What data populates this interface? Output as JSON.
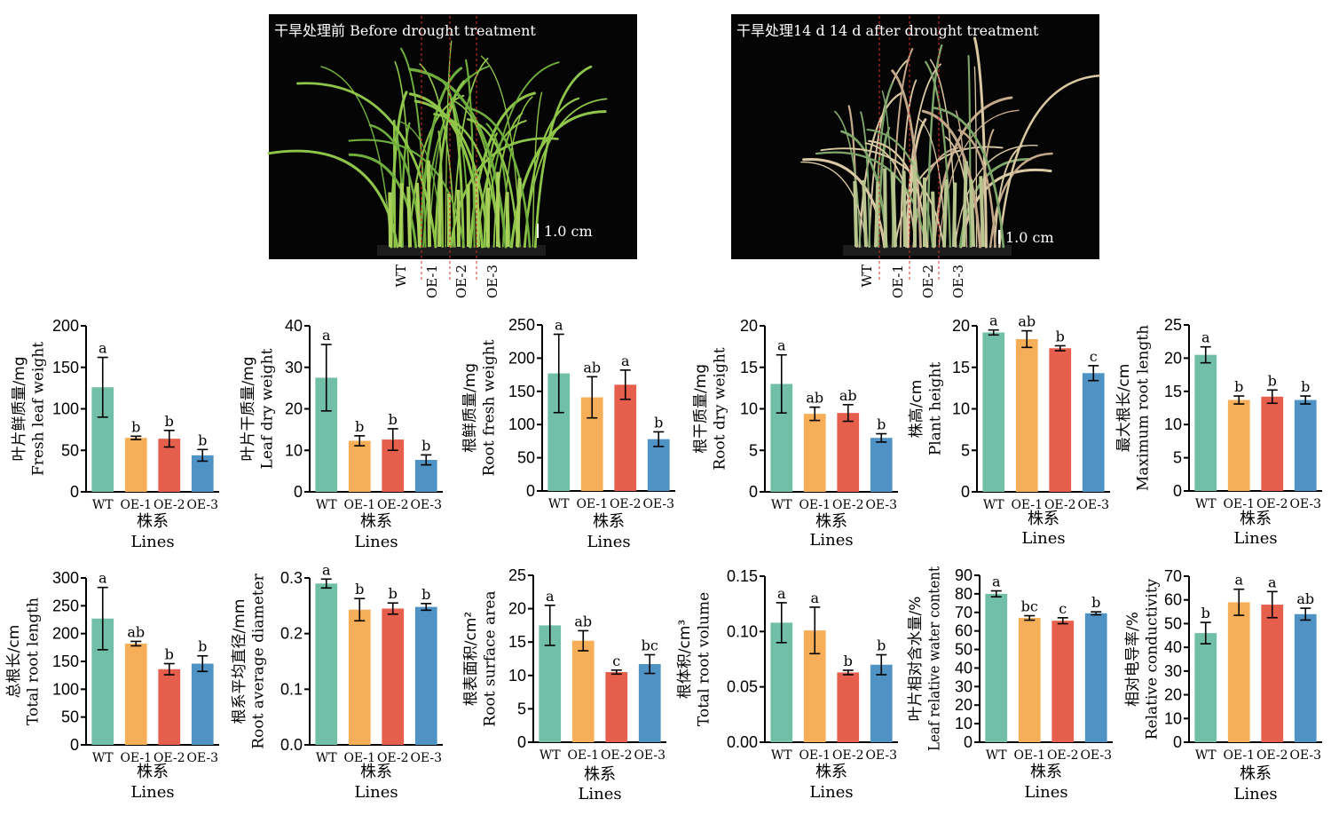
{
  "colors": {
    "WT": "#72bfa8",
    "OE-1": "#f6ae58",
    "OE-2": "#e55f4c",
    "OE-3": "#4f93c4"
  },
  "photos": [
    {
      "title": "干旱处理前 Before drought treatment",
      "scale_label": "1.0 cm",
      "lines": [
        "WT",
        "OE-1",
        "OE-2",
        "OE-3"
      ]
    },
    {
      "title": "干旱处理14 d 14 d after drought treatment",
      "scale_label": "1.0 cm",
      "lines": [
        "WT",
        "OE-1",
        "OE-2",
        "OE-3"
      ]
    }
  ],
  "chart_data": [
    {
      "type": "bar",
      "ylabel_cn": "叶片鲜质量/mg",
      "ylabel_en": "Fresh leaf weight",
      "xlabel_cn": "株系",
      "xlabel_en": "Lines",
      "categories": [
        "WT",
        "OE-1",
        "OE-2",
        "OE-3"
      ],
      "values": [
        126,
        65,
        64,
        44
      ],
      "errors": [
        36,
        2,
        10,
        7
      ],
      "letters": [
        "a",
        "b",
        "b",
        "b"
      ],
      "ylim": [
        0,
        200
      ],
      "yticks": [
        "0",
        "50",
        "100",
        "150",
        "200"
      ]
    },
    {
      "type": "bar",
      "ylabel_cn": "叶片干质量/mg",
      "ylabel_en": "Leaf dry weight",
      "xlabel_cn": "株系",
      "xlabel_en": "Lines",
      "categories": [
        "WT",
        "OE-1",
        "OE-2",
        "OE-3"
      ],
      "values": [
        27.5,
        12.3,
        12.6,
        7.7
      ],
      "errors": [
        8,
        1.2,
        2.6,
        1.2
      ],
      "letters": [
        "a",
        "b",
        "b",
        "b"
      ],
      "ylim": [
        0,
        40
      ],
      "yticks": [
        "0",
        "10",
        "20",
        "30",
        "40"
      ]
    },
    {
      "type": "bar",
      "ylabel_cn": "根鲜质量/mg",
      "ylabel_en": "Root fresh weight",
      "xlabel_cn": "株系",
      "xlabel_en": "Lines",
      "categories": [
        "WT",
        "OE-1",
        "OE-2",
        "OE-3"
      ],
      "values": [
        177,
        141,
        160,
        78
      ],
      "errors": [
        59,
        31,
        22,
        11
      ],
      "letters": [
        "a",
        "ab",
        "a",
        "b"
      ],
      "ylim": [
        0,
        250
      ],
      "yticks": [
        "0",
        "50",
        "100",
        "150",
        "200",
        "250"
      ]
    },
    {
      "type": "bar",
      "ylabel_cn": "根干质量/mg",
      "ylabel_en": "Root dry weight",
      "xlabel_cn": "株系",
      "xlabel_en": "Lines",
      "categories": [
        "WT",
        "OE-1",
        "OE-2",
        "OE-3"
      ],
      "values": [
        13.0,
        9.4,
        9.5,
        6.5
      ],
      "errors": [
        3.5,
        0.8,
        1.0,
        0.5
      ],
      "letters": [
        "a",
        "ab",
        "ab",
        "b"
      ],
      "ylim": [
        0,
        20
      ],
      "yticks": [
        "0",
        "5",
        "10",
        "15",
        "20"
      ]
    },
    {
      "type": "bar",
      "ylabel_cn": "株高/cm",
      "ylabel_en": "Plant height",
      "xlabel_cn": "株系",
      "xlabel_en": "Lines",
      "categories": [
        "WT",
        "OE-1",
        "OE-2",
        "OE-3"
      ],
      "values": [
        19.2,
        18.4,
        17.3,
        14.3
      ],
      "errors": [
        0.3,
        1.0,
        0.3,
        0.9
      ],
      "letters": [
        "a",
        "ab",
        "b",
        "c"
      ],
      "ylim": [
        0,
        20
      ],
      "yticks": [
        "0",
        "5",
        "10",
        "15",
        "20"
      ]
    },
    {
      "type": "bar",
      "ylabel_cn": "最大根长/cm",
      "ylabel_en": "Maximum root length",
      "xlabel_cn": "株系",
      "xlabel_en": "Lines",
      "categories": [
        "WT",
        "OE-1",
        "OE-2",
        "OE-3"
      ],
      "values": [
        20.5,
        13.7,
        14.2,
        13.7
      ],
      "errors": [
        1.2,
        0.6,
        1.0,
        0.6
      ],
      "letters": [
        "a",
        "b",
        "b",
        "b"
      ],
      "ylim": [
        0,
        25
      ],
      "yticks": [
        "0",
        "5",
        "10",
        "15",
        "20",
        "25"
      ]
    },
    {
      "type": "bar",
      "ylabel_cn": "总根长/cm",
      "ylabel_en": "Total root length",
      "xlabel_cn": "株系",
      "xlabel_en": "Lines",
      "categories": [
        "WT",
        "OE-1",
        "OE-2",
        "OE-3"
      ],
      "values": [
        227,
        182,
        136,
        146
      ],
      "errors": [
        56,
        4,
        10,
        14
      ],
      "letters": [
        "a",
        "ab",
        "b",
        "b"
      ],
      "ylim": [
        0,
        300
      ],
      "yticks": [
        "0",
        "50",
        "100",
        "150",
        "200",
        "250",
        "300"
      ]
    },
    {
      "type": "bar",
      "ylabel_cn": "根系平均直径/mm",
      "ylabel_en": "Root average diameter",
      "xlabel_cn": "株系",
      "xlabel_en": "Lines",
      "categories": [
        "WT",
        "OE-1",
        "OE-2",
        "OE-3"
      ],
      "values": [
        0.29,
        0.243,
        0.245,
        0.248
      ],
      "errors": [
        0.008,
        0.02,
        0.01,
        0.006
      ],
      "letters": [
        "a",
        "b",
        "b",
        "b"
      ],
      "ylim": [
        0,
        0.3
      ],
      "yticks": [
        "0.0",
        "0.1",
        "0.2",
        "0.3"
      ]
    },
    {
      "type": "bar",
      "ylabel_cn": "根表面积/cm²",
      "ylabel_en": "Root surface area",
      "xlabel_cn": "株系",
      "xlabel_en": "Lines",
      "categories": [
        "WT",
        "OE-1",
        "OE-2",
        "OE-3"
      ],
      "values": [
        17.5,
        15.2,
        10.5,
        11.7
      ],
      "errors": [
        3,
        1.5,
        0.3,
        1.4
      ],
      "letters": [
        "a",
        "ab",
        "c",
        "bc"
      ],
      "ylim": [
        0,
        25
      ],
      "yticks": [
        "0",
        "5",
        "10",
        "15",
        "20",
        "25"
      ]
    },
    {
      "type": "bar",
      "ylabel_cn": "根体积/cm³",
      "ylabel_en": "Total root volume",
      "xlabel_cn": "株系",
      "xlabel_en": "Lines",
      "categories": [
        "WT",
        "OE-1",
        "OE-2",
        "OE-3"
      ],
      "values": [
        0.108,
        0.101,
        0.063,
        0.07
      ],
      "errors": [
        0.018,
        0.021,
        0.002,
        0.009
      ],
      "letters": [
        "a",
        "a",
        "b",
        "b"
      ],
      "ylim": [
        0,
        0.15
      ],
      "yticks": [
        "0.00",
        "0.05",
        "0.10",
        "0.15"
      ]
    },
    {
      "type": "bar",
      "ylabel_cn": "叶片相对含水量/%",
      "ylabel_en": "Leaf relative water content",
      "xlabel_cn": "株系",
      "xlabel_en": "Lines",
      "categories": [
        "WT",
        "OE-1",
        "OE-2",
        "OE-3"
      ],
      "values": [
        80,
        67,
        65.5,
        69.5
      ],
      "errors": [
        1.6,
        1.2,
        1.6,
        0.8
      ],
      "letters": [
        "a",
        "bc",
        "c",
        "b"
      ],
      "ylim": [
        0,
        90
      ],
      "yticks": [
        "0",
        "10",
        "20",
        "30",
        "40",
        "50",
        "60",
        "70",
        "80",
        "90"
      ]
    },
    {
      "type": "bar",
      "ylabel_cn": "相对电导率/%",
      "ylabel_en": "Relative conductivity",
      "xlabel_cn": "株系",
      "xlabel_en": "Lines",
      "categories": [
        "WT",
        "OE-1",
        "OE-2",
        "OE-3"
      ],
      "values": [
        46,
        59,
        58,
        54
      ],
      "errors": [
        4.5,
        5.5,
        5.5,
        2.5
      ],
      "letters": [
        "b",
        "a",
        "a",
        "ab"
      ],
      "ylim": [
        0,
        70
      ],
      "yticks": [
        "0",
        "10",
        "20",
        "30",
        "40",
        "50",
        "60",
        "70"
      ]
    }
  ]
}
